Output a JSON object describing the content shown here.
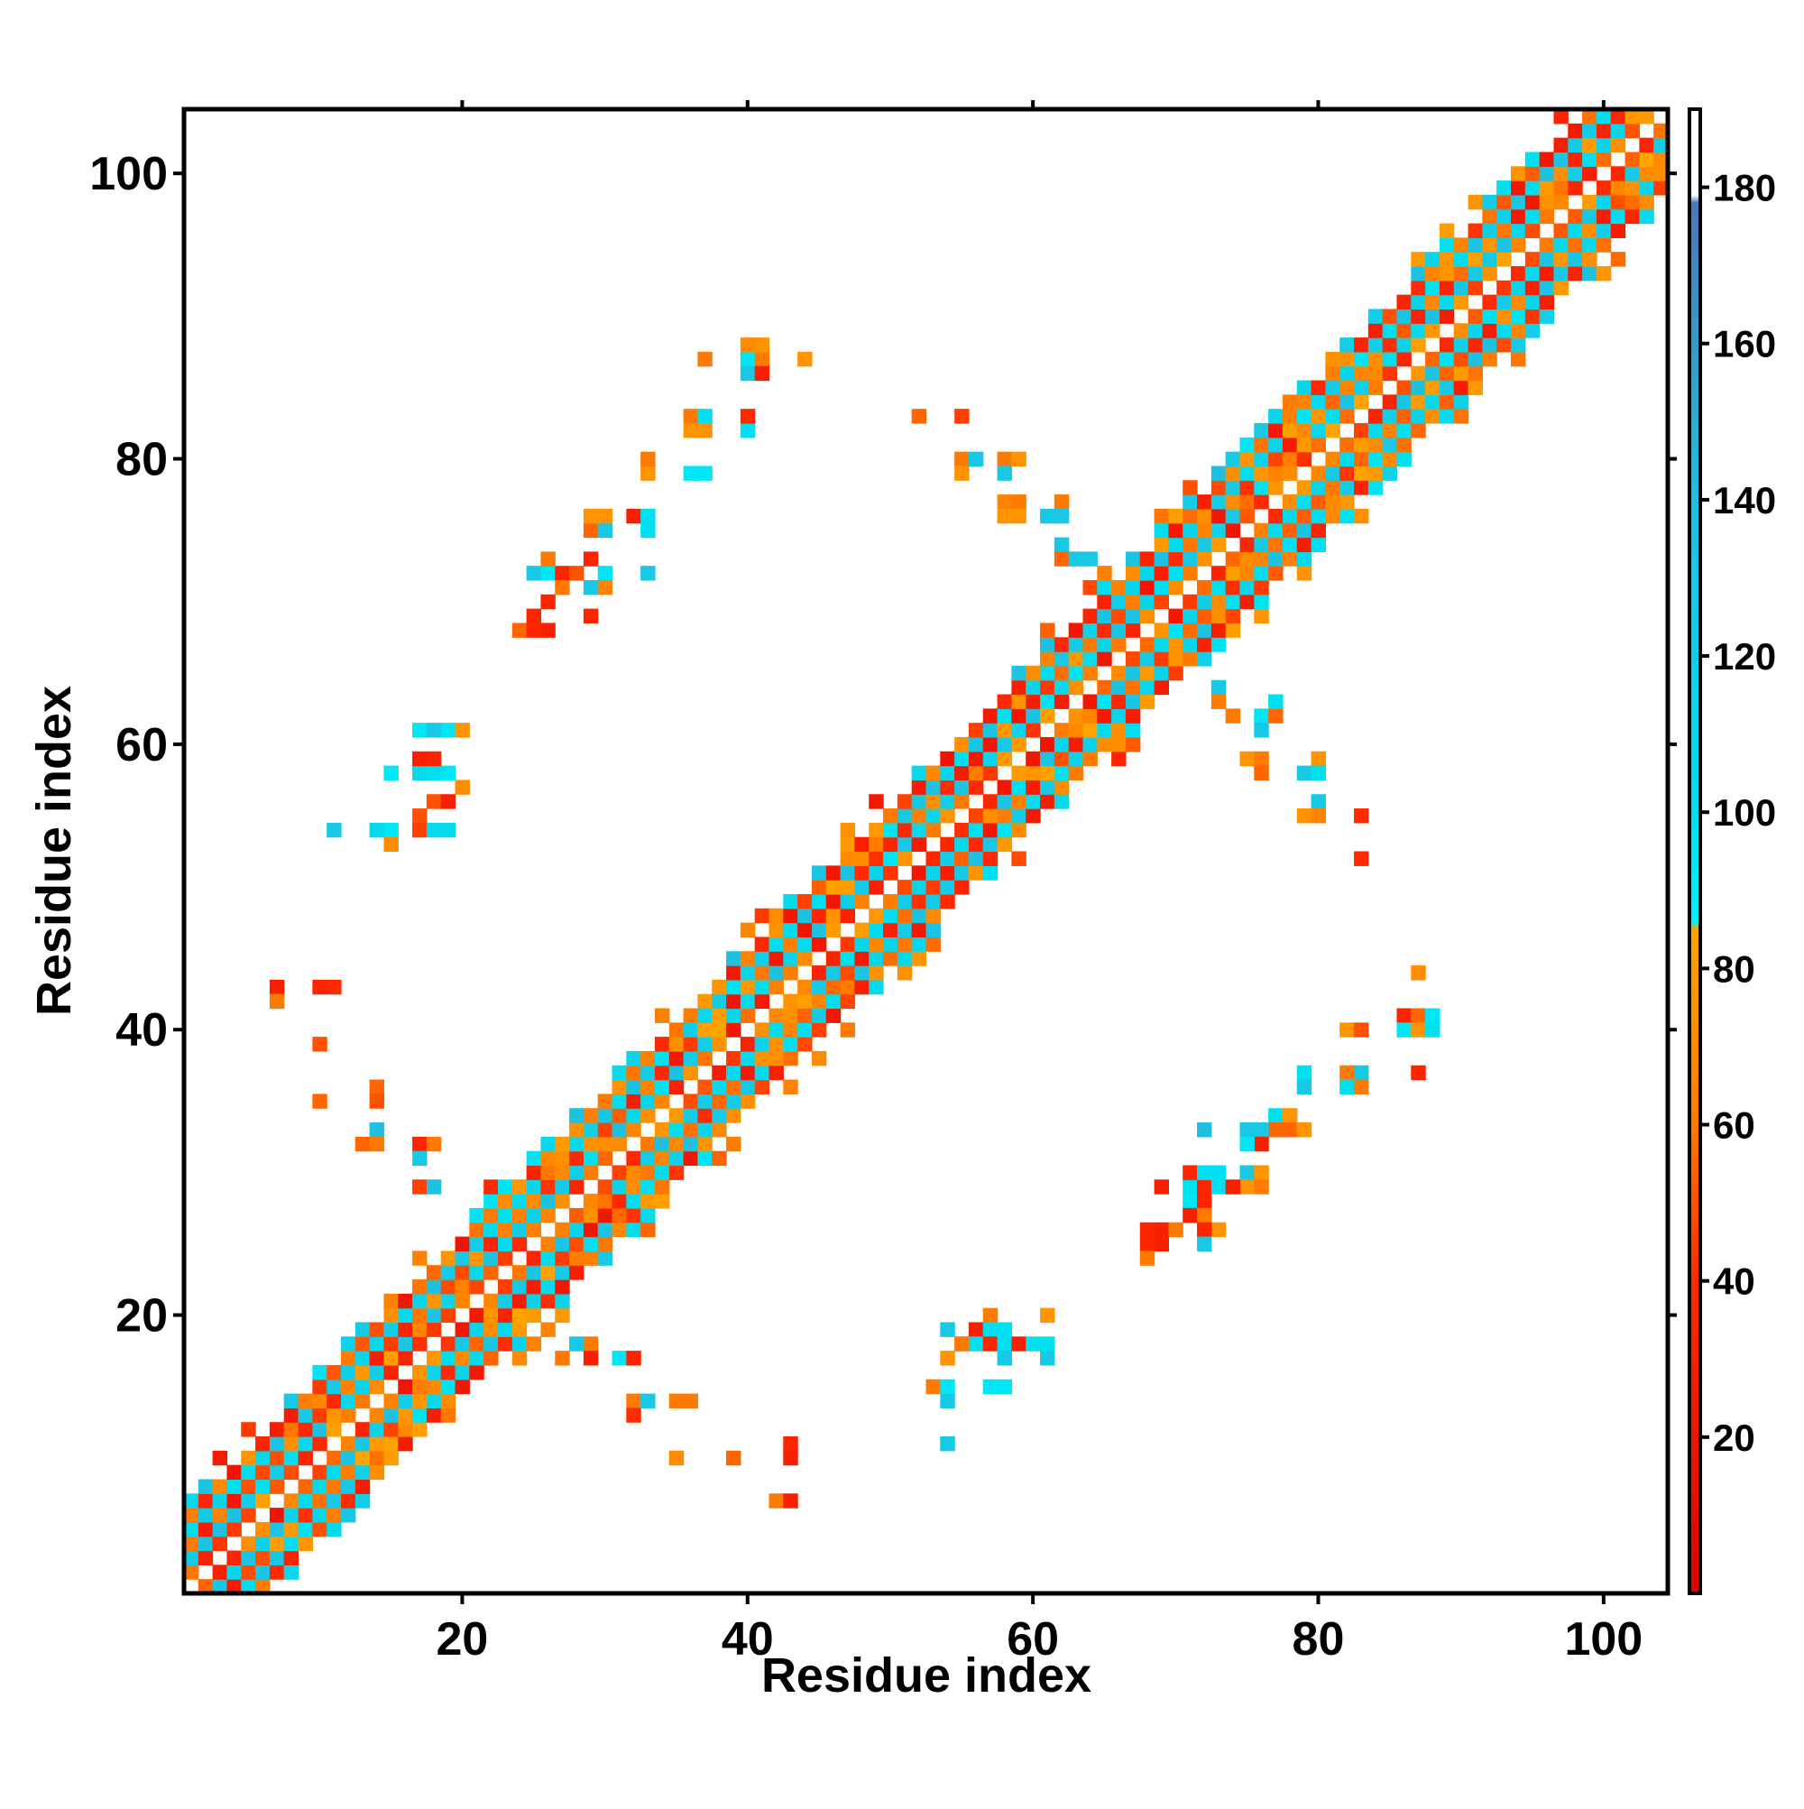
{
  "chart_data": {
    "type": "heatmap",
    "title": "",
    "xlabel": "Residue index",
    "ylabel": "Residue index",
    "xlim": [
      1,
      104
    ],
    "ylim": [
      1,
      104
    ],
    "x_ticks": [
      "20",
      "40",
      "60",
      "80",
      "100"
    ],
    "y_ticks": [
      "20",
      "40",
      "60",
      "80",
      "100"
    ],
    "grid": false,
    "colorbar": {
      "range": [
        0,
        190
      ],
      "ticks": [
        "20",
        "40",
        "60",
        "80",
        "100",
        "120",
        "140",
        "160",
        "180"
      ],
      "stops": [
        {
          "value": 0,
          "color": "#e00000"
        },
        {
          "value": 40,
          "color": "#ff2a00"
        },
        {
          "value": 60,
          "color": "#ff7a00"
        },
        {
          "value": 85,
          "color": "#ffa500"
        },
        {
          "value": 86,
          "color": "#00f0ff"
        },
        {
          "value": 100,
          "color": "#00e0f0"
        },
        {
          "value": 140,
          "color": "#20c0e0"
        },
        {
          "value": 178,
          "color": "#4a78b8"
        },
        {
          "value": 179,
          "color": "#ffffff"
        },
        {
          "value": 190,
          "color": "#ffffff"
        }
      ]
    },
    "diagonal_band": {
      "from": 1,
      "to": 104,
      "width": 7,
      "pattern": "alternating high/low contact values along the main diagonal"
    },
    "off_diagonal_contacts": [
      [
        7,
        43,
        30
      ],
      [
        10,
        43,
        35
      ],
      [
        11,
        43,
        40
      ],
      [
        7,
        42,
        60
      ],
      [
        10,
        39,
        50
      ],
      [
        10,
        35,
        55
      ],
      [
        14,
        36,
        55
      ],
      [
        14,
        35,
        50
      ],
      [
        14,
        33,
        140
      ],
      [
        13,
        32,
        55
      ],
      [
        14,
        32,
        60
      ],
      [
        17,
        32,
        35
      ],
      [
        18,
        32,
        60
      ],
      [
        17,
        31,
        130
      ],
      [
        17,
        29,
        45
      ],
      [
        18,
        29,
        140
      ],
      [
        11,
        54,
        130
      ],
      [
        14,
        54,
        110
      ],
      [
        15,
        54,
        95
      ],
      [
        15,
        53,
        70
      ],
      [
        17,
        54,
        45
      ],
      [
        18,
        54,
        110
      ],
      [
        19,
        54,
        105
      ],
      [
        17,
        55,
        50
      ],
      [
        18,
        56,
        50
      ],
      [
        19,
        56,
        30
      ],
      [
        15,
        58,
        95
      ],
      [
        17,
        58,
        110
      ],
      [
        18,
        58,
        100
      ],
      [
        19,
        58,
        95
      ],
      [
        20,
        57,
        70
      ],
      [
        17,
        59,
        30
      ],
      [
        18,
        59,
        35
      ],
      [
        17,
        61,
        95
      ],
      [
        18,
        61,
        130
      ],
      [
        19,
        61,
        95
      ],
      [
        20,
        61,
        75
      ],
      [
        24,
        68,
        55
      ],
      [
        25,
        68,
        35
      ],
      [
        26,
        68,
        30
      ],
      [
        25,
        69,
        35
      ],
      [
        26,
        70,
        35
      ],
      [
        29,
        69,
        35
      ],
      [
        25,
        72,
        130
      ],
      [
        26,
        72,
        95
      ],
      [
        27,
        72,
        35
      ],
      [
        28,
        72,
        50
      ],
      [
        30,
        72,
        95
      ],
      [
        26,
        73,
        60
      ],
      [
        29,
        73,
        35
      ],
      [
        27,
        71,
        60
      ],
      [
        29,
        71,
        130
      ],
      [
        30,
        71,
        65
      ],
      [
        29,
        75,
        55
      ],
      [
        30,
        75,
        130
      ],
      [
        29,
        76,
        75
      ],
      [
        30,
        76,
        75
      ],
      [
        32,
        76,
        30
      ],
      [
        33,
        75,
        100
      ],
      [
        33,
        76,
        100
      ],
      [
        33,
        72,
        130
      ],
      [
        33,
        79,
        75
      ],
      [
        33,
        80,
        60
      ],
      [
        36,
        79,
        95
      ],
      [
        37,
        79,
        95
      ],
      [
        36,
        82,
        75
      ],
      [
        37,
        82,
        75
      ],
      [
        36,
        83,
        60
      ],
      [
        37,
        83,
        100
      ],
      [
        37,
        87,
        60
      ],
      [
        40,
        87,
        95
      ],
      [
        41,
        87,
        60
      ],
      [
        41,
        88,
        75
      ],
      [
        40,
        88,
        70
      ],
      [
        40,
        86,
        130
      ],
      [
        41,
        86,
        30
      ],
      [
        44,
        87,
        75
      ],
      [
        40,
        82,
        100
      ],
      [
        40,
        83,
        40
      ],
      [
        52,
        83,
        55
      ],
      [
        55,
        83,
        45
      ],
      [
        55,
        80,
        60
      ],
      [
        56,
        80,
        130
      ],
      [
        55,
        79,
        75
      ],
      [
        58,
        80,
        60
      ],
      [
        59,
        80,
        75
      ],
      [
        58,
        79,
        130
      ],
      [
        58,
        77,
        65
      ],
      [
        59,
        77,
        60
      ],
      [
        58,
        76,
        75
      ],
      [
        59,
        76,
        75
      ],
      [
        61,
        76,
        130
      ],
      [
        62,
        77,
        60
      ],
      [
        62,
        76,
        130
      ],
      [
        62,
        74,
        130
      ],
      [
        62,
        73,
        55
      ],
      [
        63,
        73,
        130
      ],
      [
        64,
        73,
        130
      ],
      [
        73,
        64,
        130
      ],
      [
        73,
        63,
        60
      ],
      [
        74,
        62,
        60
      ],
      [
        76,
        62,
        95
      ],
      [
        77,
        62,
        55
      ],
      [
        77,
        63,
        100
      ],
      [
        76,
        61,
        130
      ],
      [
        75,
        59,
        75
      ],
      [
        76,
        59,
        60
      ],
      [
        76,
        58,
        55
      ],
      [
        79,
        58,
        130
      ],
      [
        80,
        59,
        75
      ],
      [
        80,
        58,
        100
      ],
      [
        80,
        56,
        130
      ],
      [
        79,
        55,
        75
      ],
      [
        80,
        55,
        65
      ],
      [
        83,
        55,
        40
      ],
      [
        83,
        52,
        40
      ],
      [
        87,
        44,
        70
      ],
      [
        86,
        41,
        35
      ],
      [
        87,
        41,
        55
      ],
      [
        88,
        41,
        95
      ],
      [
        86,
        40,
        95
      ],
      [
        87,
        40,
        75
      ],
      [
        88,
        40,
        100
      ],
      [
        82,
        40,
        75
      ],
      [
        83,
        40,
        50
      ],
      [
        79,
        37,
        100
      ],
      [
        79,
        36,
        130
      ],
      [
        82,
        37,
        60
      ],
      [
        83,
        37,
        130
      ],
      [
        82,
        36,
        100
      ],
      [
        83,
        36,
        60
      ],
      [
        87,
        37,
        35
      ],
      [
        77,
        34,
        100
      ],
      [
        78,
        34,
        75
      ],
      [
        77,
        33,
        55
      ],
      [
        78,
        33,
        55
      ],
      [
        79,
        33,
        75
      ],
      [
        72,
        33,
        140
      ],
      [
        75,
        33,
        130
      ],
      [
        76,
        33,
        130
      ],
      [
        76,
        32,
        30
      ],
      [
        75,
        32,
        95
      ],
      [
        75,
        30,
        130
      ],
      [
        76,
        30,
        75
      ],
      [
        75,
        29,
        75
      ],
      [
        76,
        29,
        60
      ],
      [
        69,
        29,
        30
      ],
      [
        71,
        29,
        100
      ],
      [
        72,
        29,
        35
      ],
      [
        73,
        29,
        100
      ],
      [
        74,
        29,
        30
      ],
      [
        71,
        30,
        35
      ],
      [
        72,
        30,
        100
      ],
      [
        73,
        30,
        100
      ],
      [
        71,
        28,
        95
      ],
      [
        72,
        28,
        35
      ],
      [
        71,
        27,
        30
      ],
      [
        72,
        27,
        60
      ],
      [
        73,
        26,
        75
      ],
      [
        72,
        26,
        35
      ],
      [
        72,
        25,
        130
      ],
      [
        68,
        26,
        35
      ],
      [
        69,
        26,
        30
      ],
      [
        70,
        26,
        60
      ],
      [
        68,
        25,
        35
      ],
      [
        69,
        25,
        30
      ],
      [
        68,
        24,
        60
      ],
      [
        54,
        19,
        130
      ],
      [
        55,
        18,
        60
      ],
      [
        56,
        19,
        30
      ],
      [
        57,
        19,
        100
      ],
      [
        58,
        19,
        100
      ],
      [
        57,
        20,
        60
      ],
      [
        56,
        18,
        100
      ],
      [
        57,
        18,
        35
      ],
      [
        58,
        18,
        100
      ],
      [
        59,
        18,
        30
      ],
      [
        60,
        18,
        100
      ],
      [
        61,
        18,
        100
      ],
      [
        61,
        17,
        130
      ],
      [
        54,
        17,
        75
      ],
      [
        58,
        17,
        130
      ],
      [
        61,
        20,
        75
      ],
      [
        55,
        18,
        60
      ],
      [
        54,
        14,
        130
      ],
      [
        53,
        15,
        60
      ],
      [
        54,
        15,
        95
      ],
      [
        57,
        15,
        95
      ],
      [
        58,
        15,
        95
      ],
      [
        54,
        11,
        130
      ],
      [
        28,
        18,
        130
      ],
      [
        29,
        18,
        60
      ],
      [
        27,
        17,
        60
      ],
      [
        29,
        17,
        30
      ],
      [
        31,
        17,
        95
      ],
      [
        32,
        17,
        35
      ],
      [
        32,
        14,
        60
      ],
      [
        32,
        13,
        40
      ],
      [
        33,
        14,
        130
      ],
      [
        35,
        14,
        60
      ],
      [
        36,
        14,
        60
      ],
      [
        35,
        10,
        70
      ],
      [
        39,
        10,
        55
      ],
      [
        43,
        11,
        35
      ],
      [
        43,
        10,
        30
      ],
      [
        42,
        7,
        60
      ],
      [
        43,
        7,
        30
      ]
    ]
  }
}
